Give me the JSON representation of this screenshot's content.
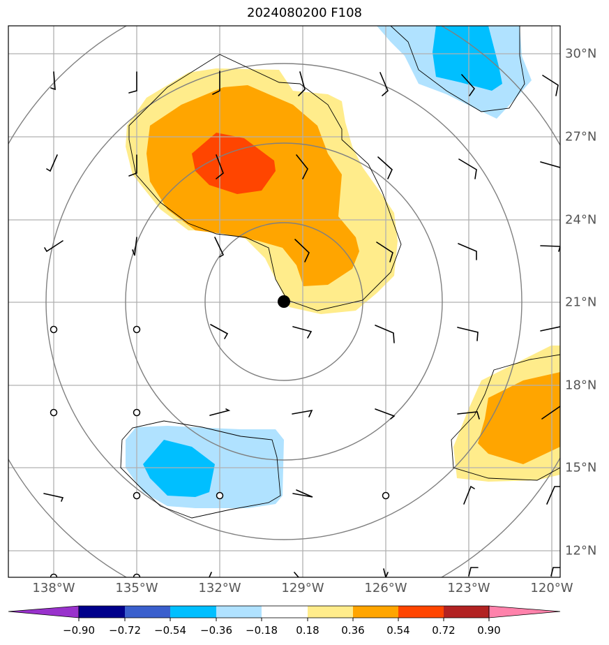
{
  "title": "2024080200 F108",
  "map": {
    "lon_labels": [
      "138°W",
      "135°W",
      "132°W",
      "129°W",
      "126°W",
      "123°W",
      "120°W"
    ],
    "lat_labels": [
      "30°N",
      "27°N",
      "24°N",
      "21°N",
      "18°N",
      "15°N",
      "12°N"
    ],
    "storm_center": {
      "lon": -129.7,
      "lat": 21.0
    },
    "colorbar": {
      "ticks": [
        "−0.90",
        "−0.72",
        "−0.54",
        "−0.36",
        "−0.18",
        "0.18",
        "0.36",
        "0.54",
        "0.72",
        "0.90"
      ],
      "colors": [
        "#9932cc",
        "#00008b",
        "#3a5fcd",
        "#00bfff",
        "#b0e2ff",
        "#ffffff",
        "#ffec8b",
        "#ffa500",
        "#ff4500",
        "#b22222",
        "#ff82ab"
      ]
    },
    "fill_colors": {
      "light_yellow": "#ffec8b",
      "orange": "#ffa500",
      "red_orange": "#ff4500",
      "light_blue": "#b0e2ff",
      "deep_sky_blue": "#00bfff"
    }
  }
}
